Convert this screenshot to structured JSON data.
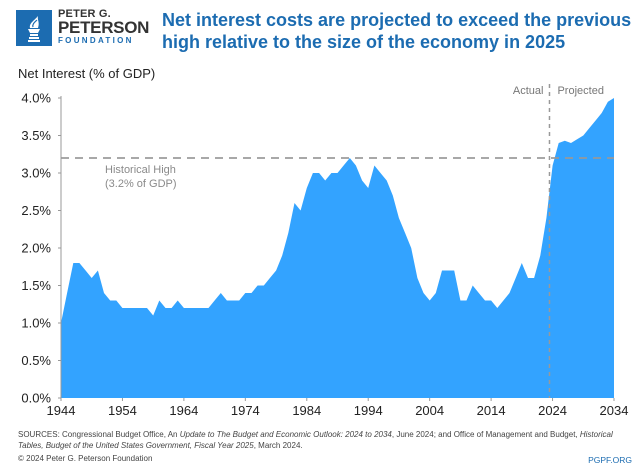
{
  "brand": {
    "line1": "PETER G.",
    "line2": "PETERSON",
    "line3": "FOUNDATION",
    "logo_icon": "torch-icon",
    "color": "#1c6cb1"
  },
  "headline": "Net interest costs are projected to exceed the previous high relative to the size of the economy in 2025",
  "footer": {
    "sources_prefix": "SOURCES: Congressional Budget Office, An ",
    "sources_i1": "Update to ",
    "sources_i2": "The Budget and Economic Outlook: 2024 to 2034",
    "sources_mid": ", June 2024; and Office of Management and Budget, ",
    "sources_i3": "Historical Tables, Budget of the United States Government, Fiscal Year 2025",
    "sources_end": ", March 2024.",
    "copyright": "© 2024 Peter G. Peterson Foundation",
    "site": "PGPF.ORG"
  },
  "chart_data": {
    "type": "area",
    "title": "Net interest costs are projected to exceed the previous high relative to the size of the economy in 2025",
    "ylabel": "Net Interest (% of GDP)",
    "xlabel": "",
    "xlim": [
      1944,
      2034
    ],
    "ylim": [
      0,
      4.0
    ],
    "grid": false,
    "fill_color": "#33a3ff",
    "x_ticks": [
      "1944",
      "1954",
      "1964",
      "1974",
      "1984",
      "1994",
      "2004",
      "2014",
      "2024",
      "2034"
    ],
    "y_ticks": [
      "0.0%",
      "0.5%",
      "1.0%",
      "1.5%",
      "2.0%",
      "2.5%",
      "3.0%",
      "3.5%",
      "4.0%"
    ],
    "y_tick_values": [
      0,
      0.5,
      1.0,
      1.5,
      2.0,
      2.5,
      3.0,
      3.5,
      4.0
    ],
    "x": [
      1944,
      1945,
      1946,
      1947,
      1948,
      1949,
      1950,
      1951,
      1952,
      1953,
      1954,
      1955,
      1956,
      1957,
      1958,
      1959,
      1960,
      1961,
      1962,
      1963,
      1964,
      1965,
      1966,
      1967,
      1968,
      1969,
      1970,
      1971,
      1972,
      1973,
      1974,
      1975,
      1976,
      1977,
      1978,
      1979,
      1980,
      1981,
      1982,
      1983,
      1984,
      1985,
      1986,
      1987,
      1988,
      1989,
      1990,
      1991,
      1992,
      1993,
      1994,
      1995,
      1996,
      1997,
      1998,
      1999,
      2000,
      2001,
      2002,
      2003,
      2004,
      2005,
      2006,
      2007,
      2008,
      2009,
      2010,
      2011,
      2012,
      2013,
      2014,
      2015,
      2016,
      2017,
      2018,
      2019,
      2020,
      2021,
      2022,
      2023,
      2024,
      2025,
      2026,
      2027,
      2028,
      2029,
      2030,
      2031,
      2032,
      2033,
      2034
    ],
    "series": [
      {
        "name": "Net Interest (% of GDP)",
        "values": [
          1.0,
          1.4,
          1.8,
          1.8,
          1.7,
          1.6,
          1.7,
          1.4,
          1.3,
          1.3,
          1.2,
          1.2,
          1.2,
          1.2,
          1.2,
          1.1,
          1.3,
          1.2,
          1.2,
          1.3,
          1.2,
          1.2,
          1.2,
          1.2,
          1.2,
          1.3,
          1.4,
          1.3,
          1.3,
          1.3,
          1.4,
          1.4,
          1.5,
          1.5,
          1.6,
          1.7,
          1.9,
          2.2,
          2.6,
          2.5,
          2.8,
          3.0,
          3.0,
          2.9,
          3.0,
          3.0,
          3.1,
          3.2,
          3.1,
          2.9,
          2.8,
          3.1,
          3.0,
          2.9,
          2.7,
          2.4,
          2.2,
          2.0,
          1.6,
          1.4,
          1.3,
          1.4,
          1.7,
          1.7,
          1.7,
          1.3,
          1.3,
          1.5,
          1.4,
          1.3,
          1.3,
          1.2,
          1.3,
          1.4,
          1.6,
          1.8,
          1.6,
          1.6,
          1.9,
          2.4,
          3.1,
          3.4,
          3.43,
          3.4,
          3.45,
          3.5,
          3.6,
          3.7,
          3.8,
          3.95,
          4.0
        ]
      }
    ],
    "reference_lines": [
      {
        "type": "horizontal",
        "value": 3.2,
        "label_line1": "Historical High",
        "label_line2": "(3.2% of GDP)",
        "style": "dashed"
      },
      {
        "type": "vertical",
        "value": 2023.5,
        "label_left": "Actual",
        "label_right": "Projected",
        "style": "dashed"
      }
    ]
  }
}
